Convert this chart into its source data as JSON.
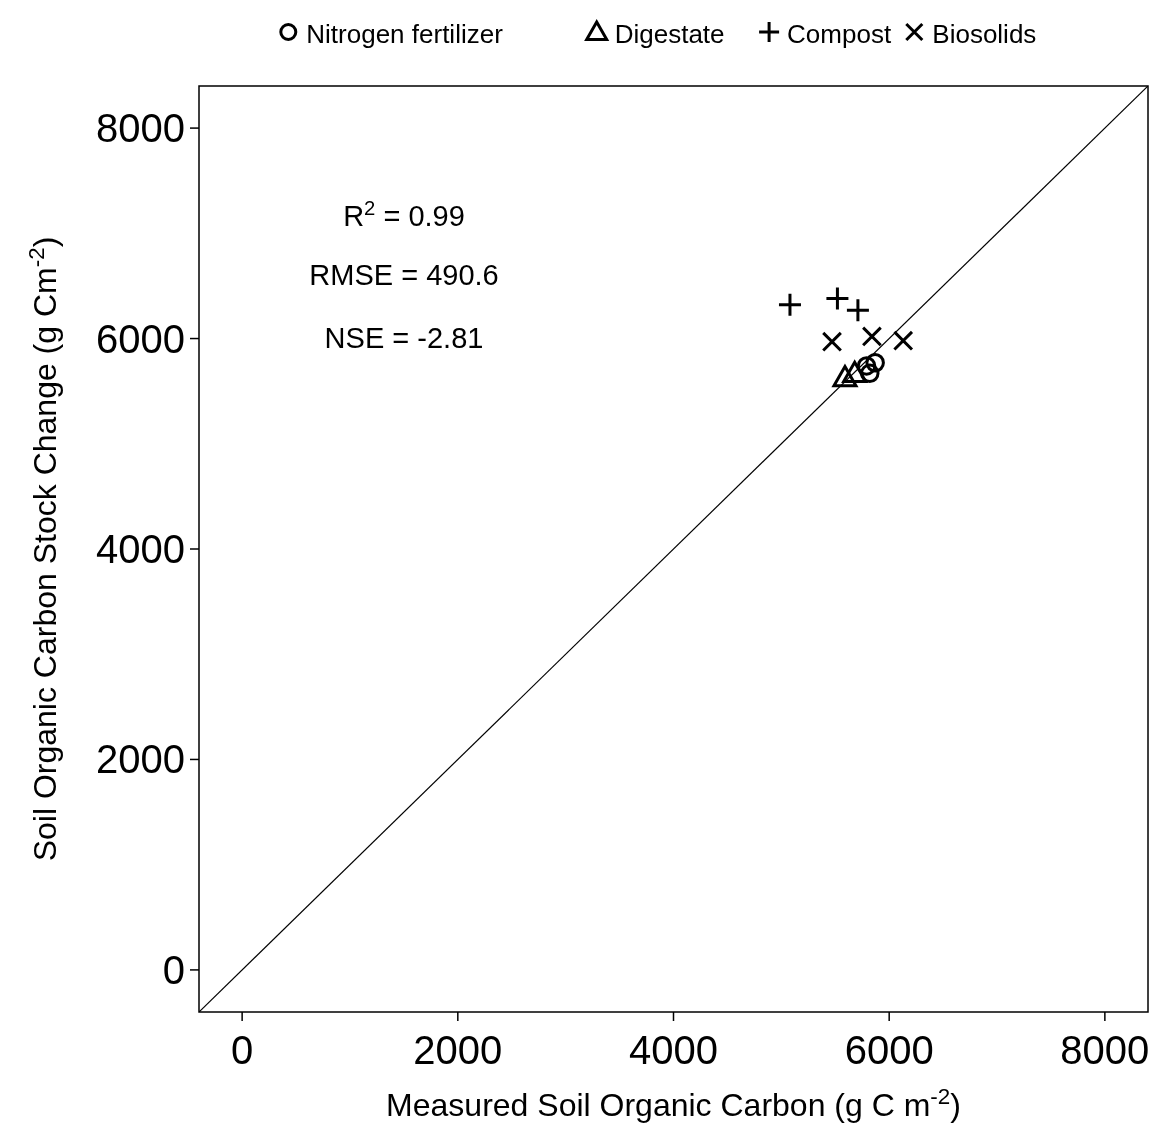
{
  "chart_data": {
    "type": "scatter",
    "xlabel": "Measured Soil Organic Carbon (g C  m$^{-2}$)",
    "ylabel": "Soil Organic Carbon Stock Change (g Cm$^{-2}$)",
    "xlim": [
      -400,
      8400
    ],
    "ylim": [
      -400,
      8400
    ],
    "xticks": [
      0,
      2000,
      4000,
      6000,
      8000
    ],
    "yticks": [
      0,
      2000,
      4000,
      6000,
      8000
    ],
    "grid": false,
    "legend": "top",
    "annotations": [
      "R$^{2}$ = 0.99",
      "RMSE = 490.6",
      "NSE = -2.81"
    ],
    "series": [
      {
        "name": "Nitrogen fertilizer",
        "color": "#000000",
        "marker": "circle",
        "x": [
          5790,
          5870,
          5820
        ],
        "values": [
          5740,
          5770,
          5670
        ]
      },
      {
        "name": "Digestate",
        "color": "#000000",
        "marker": "triangle",
        "x": [
          5590,
          5680
        ],
        "values": [
          5630,
          5670
        ]
      },
      {
        "name": "Compost",
        "color": "#000000",
        "marker": "cross",
        "x": [
          5080,
          5520,
          5710
        ],
        "values": [
          6320,
          6380,
          6270
        ]
      },
      {
        "name": "Biosolids",
        "color": "#000000",
        "marker": "x",
        "x": [
          5470,
          5840,
          6130
        ],
        "values": [
          5970,
          6020,
          5980
        ]
      },
      {
        "type": "line",
        "color": "#000000",
        "x": [
          -400,
          8400
        ],
        "values": [
          -400,
          8400
        ],
        "marker": "none",
        "line_style": "solid"
      }
    ]
  }
}
